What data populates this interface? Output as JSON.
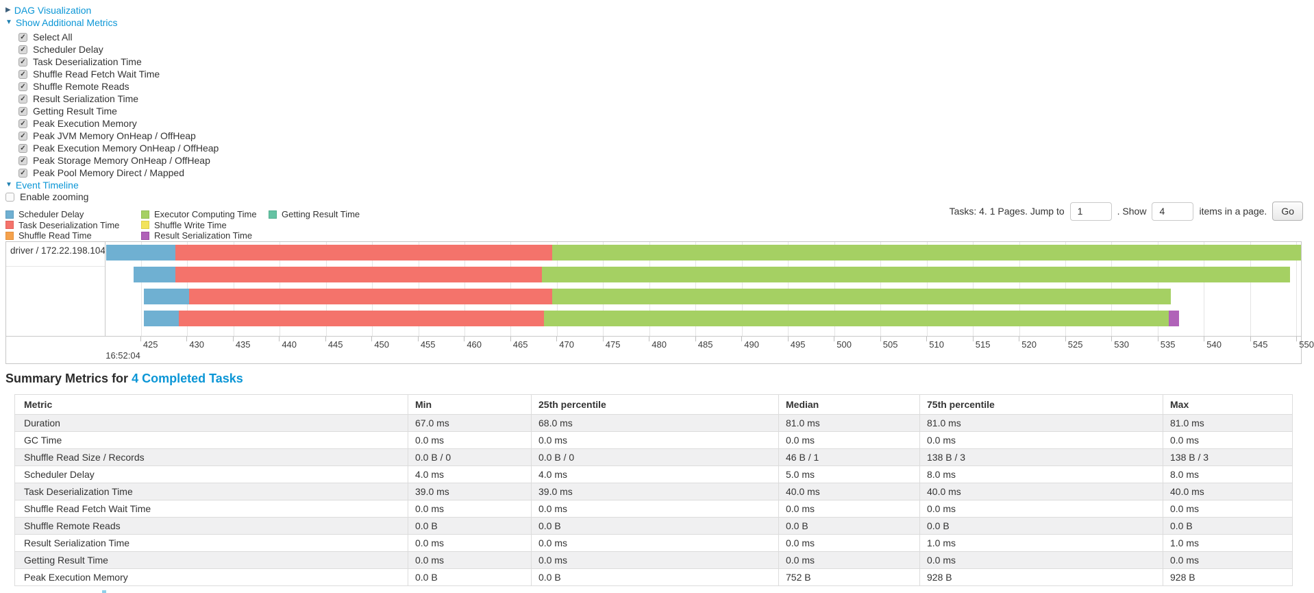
{
  "toggles": {
    "dag": {
      "arrow": "▶",
      "label": "DAG Visualization"
    },
    "additional_metrics": {
      "arrow": "▼",
      "label": "Show Additional Metrics"
    },
    "event_timeline": {
      "arrow": "▼",
      "label": "Event Timeline"
    }
  },
  "check_glyph": "✓",
  "metrics_panel": {
    "items": [
      {
        "label": "Select All",
        "checked": true
      },
      {
        "label": "Scheduler Delay",
        "checked": true
      },
      {
        "label": "Task Deserialization Time",
        "checked": true
      },
      {
        "label": "Shuffle Read Fetch Wait Time",
        "checked": true
      },
      {
        "label": "Shuffle Remote Reads",
        "checked": true
      },
      {
        "label": "Result Serialization Time",
        "checked": true
      },
      {
        "label": "Getting Result Time",
        "checked": true
      },
      {
        "label": "Peak Execution Memory",
        "checked": true
      },
      {
        "label": "Peak JVM Memory OnHeap / OffHeap",
        "checked": true
      },
      {
        "label": "Peak Execution Memory OnHeap / OffHeap",
        "checked": true
      },
      {
        "label": "Peak Storage Memory OnHeap / OffHeap",
        "checked": true
      },
      {
        "label": "Peak Pool Memory Direct / Mapped",
        "checked": true
      }
    ]
  },
  "enable_zooming": {
    "label": "Enable zooming",
    "checked": false
  },
  "pagination": {
    "prefix": "Tasks: 4. 1 Pages. Jump to",
    "jump_value": "1",
    "mid": ". Show",
    "show_value": "4",
    "suffix": "items in a page.",
    "go_label": "Go"
  },
  "legend": {
    "columns": [
      [
        "scheduler_delay",
        "task_deserialization",
        "shuffle_read"
      ],
      [
        "executor_computing",
        "shuffle_write",
        "result_serialization"
      ],
      [
        "getting_result"
      ]
    ]
  },
  "chart_data": {
    "type": "timeline",
    "title": "Event Timeline",
    "group_label": "driver / 172.22.198.104",
    "x_axis": {
      "time_label": "16:52:04",
      "tick_start": 425,
      "tick_end": 550,
      "tick_step": 5,
      "domain_min": 421.16,
      "domain_max": 550.5,
      "units": "milliseconds within 16:52:04"
    },
    "colors": {
      "scheduler_delay": {
        "label": "Scheduler Delay",
        "fill": "#6FB0D2",
        "border": "#5B9CBE"
      },
      "task_deserialization": {
        "label": "Task Deserialization Time",
        "fill": "#F4736B",
        "border": "#E2625B"
      },
      "shuffle_read": {
        "label": "Shuffle Read Time",
        "fill": "#F5A24D",
        "border": "#E3913D"
      },
      "executor_computing": {
        "label": "Executor Computing Time",
        "fill": "#A5D063",
        "border": "#92BD52"
      },
      "shuffle_write": {
        "label": "Shuffle Write Time",
        "fill": "#F2E35B",
        "border": "#DDCE49"
      },
      "result_serialization": {
        "label": "Result Serialization Time",
        "fill": "#B062B8",
        "border": "#9C4DA5"
      },
      "getting_result": {
        "label": "Getting Result Time",
        "fill": "#65C2A3",
        "border": "#52AF90"
      }
    },
    "tasks": [
      {
        "segments": [
          {
            "type": "scheduler_delay",
            "start": 421.2,
            "end": 428.7
          },
          {
            "type": "task_deserialization",
            "start": 428.7,
            "end": 469.5
          },
          {
            "type": "executor_computing",
            "start": 469.5,
            "end": 550.5
          }
        ]
      },
      {
        "segments": [
          {
            "type": "scheduler_delay",
            "start": 424.2,
            "end": 428.7
          },
          {
            "type": "task_deserialization",
            "start": 428.7,
            "end": 468.4
          },
          {
            "type": "executor_computing",
            "start": 468.4,
            "end": 549.3
          }
        ]
      },
      {
        "segments": [
          {
            "type": "scheduler_delay",
            "start": 425.3,
            "end": 430.2
          },
          {
            "type": "task_deserialization",
            "start": 430.2,
            "end": 469.5
          },
          {
            "type": "executor_computing",
            "start": 469.5,
            "end": 536.4
          }
        ]
      },
      {
        "segments": [
          {
            "type": "scheduler_delay",
            "start": 425.3,
            "end": 429.1
          },
          {
            "type": "task_deserialization",
            "start": 429.1,
            "end": 468.6
          },
          {
            "type": "executor_computing",
            "start": 468.6,
            "end": 536.2
          },
          {
            "type": "result_serialization",
            "start": 536.2,
            "end": 537.3
          }
        ]
      }
    ]
  },
  "summary": {
    "title_prefix": "Summary Metrics for",
    "title_link": "4 Completed Tasks",
    "table": {
      "headers": [
        "Metric",
        "Min",
        "25th percentile",
        "Median",
        "75th percentile",
        "Max"
      ],
      "rows": [
        [
          "Duration",
          "67.0 ms",
          "68.0 ms",
          "81.0 ms",
          "81.0 ms",
          "81.0 ms"
        ],
        [
          "GC Time",
          "0.0 ms",
          "0.0 ms",
          "0.0 ms",
          "0.0 ms",
          "0.0 ms"
        ],
        [
          "Shuffle Read Size / Records",
          "0.0 B / 0",
          "0.0 B / 0",
          "46 B / 1",
          "138 B / 3",
          "138 B / 3"
        ],
        [
          "Scheduler Delay",
          "4.0 ms",
          "4.0 ms",
          "5.0 ms",
          "8.0 ms",
          "8.0 ms"
        ],
        [
          "Task Deserialization Time",
          "39.0 ms",
          "39.0 ms",
          "40.0 ms",
          "40.0 ms",
          "40.0 ms"
        ],
        [
          "Shuffle Read Fetch Wait Time",
          "0.0 ms",
          "0.0 ms",
          "0.0 ms",
          "0.0 ms",
          "0.0 ms"
        ],
        [
          "Shuffle Remote Reads",
          "0.0 B",
          "0.0 B",
          "0.0 B",
          "0.0 B",
          "0.0 B"
        ],
        [
          "Result Serialization Time",
          "0.0 ms",
          "0.0 ms",
          "0.0 ms",
          "1.0 ms",
          "1.0 ms"
        ],
        [
          "Getting Result Time",
          "0.0 ms",
          "0.0 ms",
          "0.0 ms",
          "0.0 ms",
          "0.0 ms"
        ],
        [
          "Peak Execution Memory",
          "0.0 B",
          "0.0 B",
          "752 B",
          "928 B",
          "928 B"
        ]
      ]
    }
  }
}
